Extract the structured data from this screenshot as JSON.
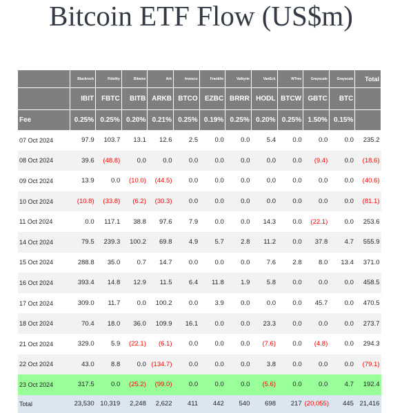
{
  "title": "Bitcoin ETF Flow (US$m)",
  "issuers": [
    "Blackrock",
    "Fidelity",
    "Bitwise",
    "Ark",
    "Invesco",
    "Franklin",
    "Valkyrie",
    "VanEck",
    "WTree",
    "Grayscale",
    "Grayscale"
  ],
  "total_header": "Total",
  "tickers": [
    "IBIT",
    "FBTC",
    "BITB",
    "ARKB",
    "BTCO",
    "EZBC",
    "BRRR",
    "HODL",
    "BTCW",
    "GBTC",
    "BTC"
  ],
  "fee_label": "Fee",
  "fees": [
    "0.25%",
    "0.25%",
    "0.20%",
    "0.21%",
    "0.25%",
    "0.19%",
    "0.25%",
    "0.20%",
    "0.25%",
    "1.50%",
    "0.15%"
  ],
  "rows": [
    {
      "date": "07 Oct 2024",
      "vals": [
        "97.9",
        "103.7",
        "13.1",
        "12.6",
        "2.5",
        "0.0",
        "0.0",
        "5.4",
        "0.0",
        "0.0",
        "0.0"
      ],
      "total": "235.2"
    },
    {
      "date": "08 Oct 2024",
      "vals": [
        "39.6",
        "(48.8)",
        "0.0",
        "0.0",
        "0.0",
        "0.0",
        "0.0",
        "0.0",
        "0.0",
        "(9.4)",
        "0.0"
      ],
      "total": "(18.6)"
    },
    {
      "date": "09 Oct 2024",
      "vals": [
        "13.9",
        "0.0",
        "(10.0)",
        "(44.5)",
        "0.0",
        "0.0",
        "0.0",
        "0.0",
        "0.0",
        "0.0",
        "0.0"
      ],
      "total": "(40.6)"
    },
    {
      "date": "10 Oct 2024",
      "vals": [
        "(10.8)",
        "(33.8)",
        "(6.2)",
        "(30.3)",
        "0.0",
        "0.0",
        "0.0",
        "0.0",
        "0.0",
        "0.0",
        "0.0"
      ],
      "total": "(81.1)"
    },
    {
      "date": "11 Oct 2024",
      "vals": [
        "0.0",
        "117.1",
        "38.8",
        "97.6",
        "7.9",
        "0.0",
        "0.0",
        "14.3",
        "0.0",
        "(22.1)",
        "0.0"
      ],
      "total": "253.6"
    },
    {
      "date": "14 Oct 2024",
      "vals": [
        "79.5",
        "239.3",
        "100.2",
        "69.8",
        "4.9",
        "5.7",
        "2.8",
        "11.2",
        "0.0",
        "37.8",
        "4.7"
      ],
      "total": "555.9"
    },
    {
      "date": "15 Oct 2024",
      "vals": [
        "288.8",
        "35.0",
        "0.7",
        "14.7",
        "0.0",
        "0.0",
        "0.0",
        "7.6",
        "2.8",
        "8.0",
        "13.4"
      ],
      "total": "371.0"
    },
    {
      "date": "16 Oct 2024",
      "vals": [
        "393.4",
        "14.8",
        "12.9",
        "11.5",
        "6.4",
        "11.8",
        "1.9",
        "5.8",
        "0.0",
        "0.0",
        "0.0"
      ],
      "total": "458.5"
    },
    {
      "date": "17 Oct 2024",
      "vals": [
        "309.0",
        "11.7",
        "0.0",
        "100.2",
        "0.0",
        "3.9",
        "0.0",
        "0.0",
        "0.0",
        "45.7",
        "0.0"
      ],
      "total": "470.5"
    },
    {
      "date": "18 Oct 2024",
      "vals": [
        "70.4",
        "18.0",
        "36.0",
        "109.9",
        "16.1",
        "0.0",
        "0.0",
        "23.3",
        "0.0",
        "0.0",
        "0.0"
      ],
      "total": "273.7"
    },
    {
      "date": "21 Oct 2024",
      "vals": [
        "329.0",
        "5.9",
        "(22.1)",
        "(6.1)",
        "0.0",
        "0.0",
        "0.0",
        "(7.6)",
        "0.0",
        "(4.8)",
        "0.0"
      ],
      "total": "294.3"
    },
    {
      "date": "22 Oct 2024",
      "vals": [
        "43.0",
        "8.8",
        "0.0",
        "(134.7)",
        "0.0",
        "0.0",
        "0.0",
        "3.8",
        "0.0",
        "0.0",
        "0.0"
      ],
      "total": "(79.1)"
    },
    {
      "date": "23 Oct 2024",
      "vals": [
        "317.5",
        "0.0",
        "(25.2)",
        "(99.0)",
        "0.0",
        "0.0",
        "0.0",
        "(5.6)",
        "0.0",
        "0.0",
        "4.7"
      ],
      "total": "192.4",
      "highlight": true
    }
  ],
  "total_row": {
    "label": "Total",
    "vals": [
      "23,530",
      "10,319",
      "2,248",
      "2,622",
      "411",
      "442",
      "540",
      "698",
      "217",
      "(20,055)",
      "445"
    ],
    "total": "21,416"
  },
  "colors": {
    "header_bg": "#7f7f7f",
    "negative": "#ff0000",
    "highlight_row": "#99ff99",
    "total_row_bg": "#dce6f1"
  }
}
